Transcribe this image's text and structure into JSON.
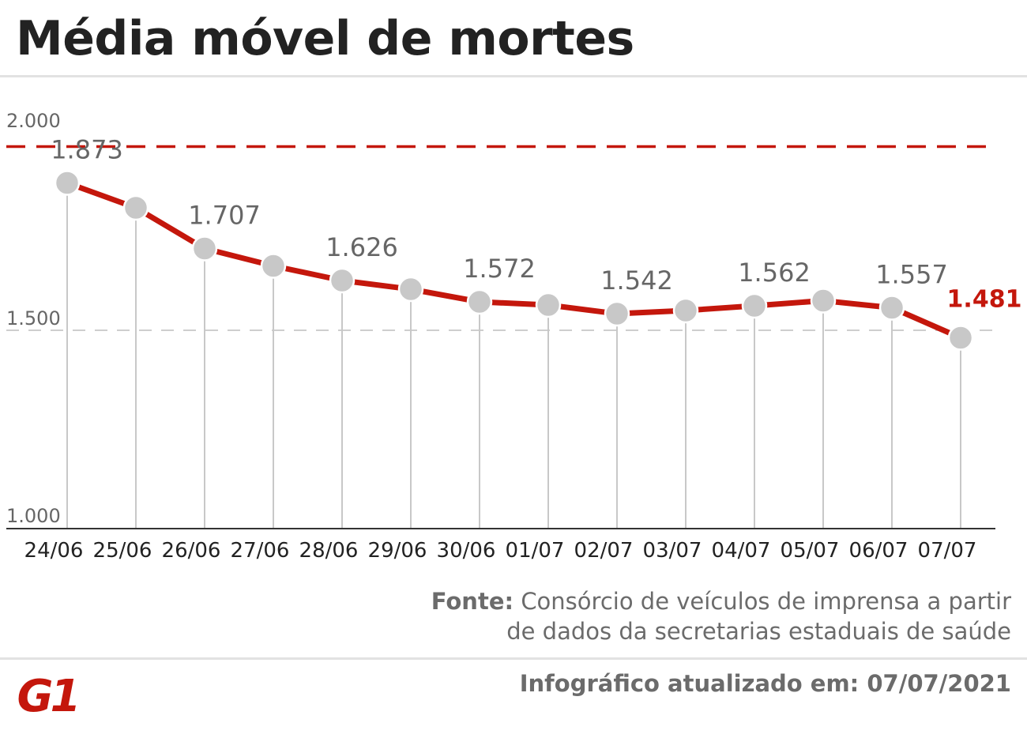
{
  "header": {
    "title": "Média móvel de mortes"
  },
  "chart_data": {
    "type": "line",
    "title": "Média móvel de mortes",
    "xlabel": "",
    "ylabel": "",
    "ylim": [
      1000,
      2000
    ],
    "yticks": [
      "2.000",
      "1.500",
      "1.000"
    ],
    "categories": [
      "24/06",
      "25/06",
      "26/06",
      "27/06",
      "28/06",
      "29/06",
      "30/06",
      "01/07",
      "02/07",
      "03/07",
      "04/07",
      "05/07",
      "06/07",
      "07/07"
    ],
    "values": [
      1873,
      1810,
      1707,
      1663,
      1626,
      1604,
      1572,
      1564,
      1542,
      1550,
      1562,
      1575,
      1557,
      1481
    ],
    "data_labels": [
      "1.873",
      null,
      "1.707",
      null,
      "1.626",
      null,
      "1.572",
      null,
      "1.542",
      null,
      "1.562",
      null,
      "1.557",
      "1.481"
    ],
    "reference_line_value": 1965,
    "grid": "horizontal-dashed",
    "colors": {
      "line": "#c4170c",
      "marker": "#c8c8c8",
      "reference": "#c4170c",
      "gridline": "#bdbdbd",
      "stem": "#c8c8c8",
      "highlight_label": "#c4170c",
      "label": "#666666"
    }
  },
  "footer": {
    "source_label": "Fonte:",
    "source_text_line1": "Consórcio de veículos de imprensa a partir",
    "source_text_line2": "de dados da secretarias estaduais de saúde",
    "updated": "Infográfico atualizado em: 07/07/2021",
    "logo_text": "G1",
    "logo_color": "#c4170c"
  }
}
